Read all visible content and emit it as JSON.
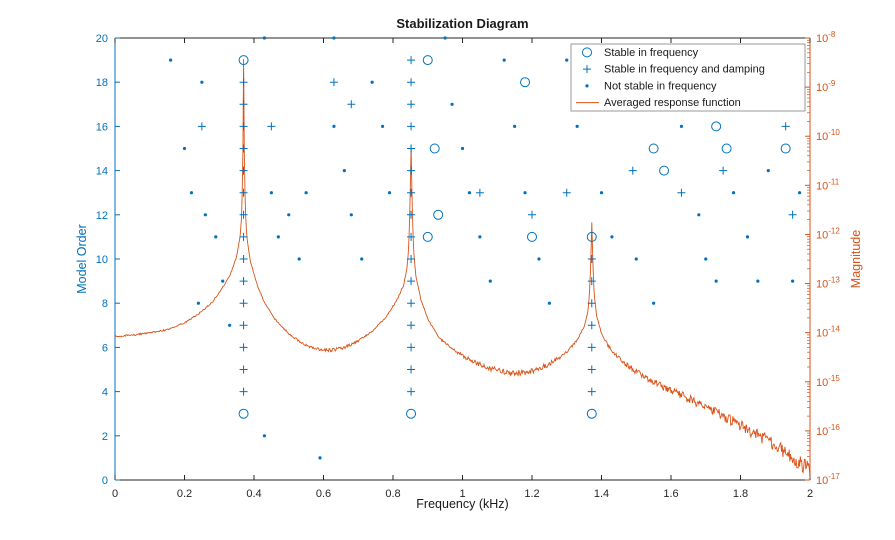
{
  "figure": {
    "background": "#ffffff"
  },
  "chart_data": {
    "type": "scatter+line",
    "title": "Stabilization Diagram",
    "xlabel": "Frequency (kHz)",
    "ylabel_left": "Model Order",
    "ylabel_right": "Magnitude",
    "xlim": [
      0,
      2
    ],
    "ylim_left": [
      0,
      20
    ],
    "ylim_right_log10": [
      -17,
      -8
    ],
    "legend_position": "top-right",
    "grid": false,
    "peak_frequencies_khz": [
      0.37,
      0.852,
      1.372
    ],
    "colors": {
      "blue": "#0072BD",
      "orange": "#D95319",
      "axis": "#262626",
      "legend_border": "#808080"
    },
    "x_ticks": [
      {
        "v": 0,
        "label": "0"
      },
      {
        "v": 0.2,
        "label": "0.2"
      },
      {
        "v": 0.4,
        "label": "0.4"
      },
      {
        "v": 0.6,
        "label": "0.6"
      },
      {
        "v": 0.8,
        "label": "0.8"
      },
      {
        "v": 1,
        "label": "1"
      },
      {
        "v": 1.2,
        "label": "1.2"
      },
      {
        "v": 1.4,
        "label": "1.4"
      },
      {
        "v": 1.6,
        "label": "1.6"
      },
      {
        "v": 1.8,
        "label": "1.8"
      },
      {
        "v": 2,
        "label": "2"
      }
    ],
    "y_left_ticks": [
      {
        "v": 0,
        "label": "0"
      },
      {
        "v": 2,
        "label": "2"
      },
      {
        "v": 4,
        "label": "4"
      },
      {
        "v": 6,
        "label": "6"
      },
      {
        "v": 8,
        "label": "8"
      },
      {
        "v": 10,
        "label": "10"
      },
      {
        "v": 12,
        "label": "12"
      },
      {
        "v": 14,
        "label": "14"
      },
      {
        "v": 16,
        "label": "16"
      },
      {
        "v": 18,
        "label": "18"
      },
      {
        "v": 20,
        "label": "20"
      }
    ],
    "y_right_tick_exponents": [
      -8,
      -9,
      -10,
      -11,
      -12,
      -13,
      -14,
      -15,
      -16,
      -17
    ],
    "series": [
      {
        "name": "Stable in frequency",
        "marker": "circle",
        "axis": "left",
        "points": [
          [
            0.37,
            19
          ],
          [
            0.37,
            3
          ],
          [
            0.852,
            3
          ],
          [
            0.9,
            19
          ],
          [
            0.92,
            15
          ],
          [
            0.93,
            12
          ],
          [
            0.9,
            11
          ],
          [
            1.18,
            18
          ],
          [
            1.2,
            11
          ],
          [
            1.372,
            11
          ],
          [
            1.372,
            3
          ],
          [
            1.5,
            17
          ],
          [
            1.55,
            15
          ],
          [
            1.58,
            14
          ],
          [
            1.73,
            16
          ],
          [
            1.76,
            15
          ],
          [
            1.9,
            17
          ],
          [
            1.93,
            15
          ]
        ]
      },
      {
        "name": "Stable in frequency and damping",
        "marker": "plus",
        "axis": "left",
        "points": [
          [
            0.37,
            4
          ],
          [
            0.37,
            5
          ],
          [
            0.37,
            6
          ],
          [
            0.37,
            7
          ],
          [
            0.37,
            8
          ],
          [
            0.37,
            9
          ],
          [
            0.37,
            10
          ],
          [
            0.37,
            11
          ],
          [
            0.37,
            12
          ],
          [
            0.37,
            13
          ],
          [
            0.37,
            14
          ],
          [
            0.37,
            15
          ],
          [
            0.37,
            16
          ],
          [
            0.37,
            17
          ],
          [
            0.37,
            18
          ],
          [
            0.852,
            4
          ],
          [
            0.852,
            5
          ],
          [
            0.852,
            6
          ],
          [
            0.852,
            7
          ],
          [
            0.852,
            8
          ],
          [
            0.852,
            9
          ],
          [
            0.852,
            10
          ],
          [
            0.852,
            11
          ],
          [
            0.852,
            12
          ],
          [
            0.852,
            13
          ],
          [
            0.852,
            14
          ],
          [
            0.852,
            15
          ],
          [
            0.852,
            16
          ],
          [
            0.852,
            17
          ],
          [
            0.852,
            18
          ],
          [
            0.852,
            19
          ],
          [
            1.372,
            4
          ],
          [
            1.372,
            5
          ],
          [
            1.372,
            6
          ],
          [
            1.372,
            7
          ],
          [
            1.372,
            8
          ],
          [
            1.372,
            9
          ],
          [
            1.372,
            10
          ],
          [
            0.25,
            16
          ],
          [
            0.45,
            16
          ],
          [
            0.63,
            18
          ],
          [
            0.68,
            17
          ],
          [
            1.05,
            13
          ],
          [
            1.2,
            12
          ],
          [
            1.3,
            13
          ],
          [
            1.49,
            14
          ],
          [
            1.63,
            13
          ],
          [
            1.75,
            14
          ],
          [
            1.93,
            16
          ],
          [
            1.95,
            12
          ]
        ]
      },
      {
        "name": "Not stable in frequency",
        "marker": "dot",
        "axis": "left",
        "points": [
          [
            0.16,
            19
          ],
          [
            0.25,
            18
          ],
          [
            0.2,
            15
          ],
          [
            0.22,
            13
          ],
          [
            0.26,
            12
          ],
          [
            0.29,
            11
          ],
          [
            0.24,
            8
          ],
          [
            0.31,
            9
          ],
          [
            0.33,
            7
          ],
          [
            0.43,
            20
          ],
          [
            0.45,
            13
          ],
          [
            0.47,
            11
          ],
          [
            0.43,
            2
          ],
          [
            0.5,
            12
          ],
          [
            0.53,
            10
          ],
          [
            0.55,
            13
          ],
          [
            0.59,
            1
          ],
          [
            0.63,
            20
          ],
          [
            0.63,
            16
          ],
          [
            0.66,
            14
          ],
          [
            0.68,
            12
          ],
          [
            0.71,
            10
          ],
          [
            0.74,
            18
          ],
          [
            0.77,
            16
          ],
          [
            0.79,
            13
          ],
          [
            0.95,
            20
          ],
          [
            0.97,
            17
          ],
          [
            1.0,
            15
          ],
          [
            1.02,
            13
          ],
          [
            1.05,
            11
          ],
          [
            1.08,
            9
          ],
          [
            1.12,
            19
          ],
          [
            1.15,
            16
          ],
          [
            1.18,
            13
          ],
          [
            1.22,
            10
          ],
          [
            1.25,
            8
          ],
          [
            1.3,
            19
          ],
          [
            1.33,
            16
          ],
          [
            1.4,
            13
          ],
          [
            1.43,
            11
          ],
          [
            1.45,
            18
          ],
          [
            1.5,
            10
          ],
          [
            1.55,
            8
          ],
          [
            1.6,
            19
          ],
          [
            1.63,
            16
          ],
          [
            1.68,
            12
          ],
          [
            1.7,
            10
          ],
          [
            1.73,
            9
          ],
          [
            1.78,
            13
          ],
          [
            1.82,
            11
          ],
          [
            1.85,
            9
          ],
          [
            1.88,
            14
          ],
          [
            1.9,
            19
          ],
          [
            1.95,
            9
          ],
          [
            1.97,
            13
          ]
        ]
      },
      {
        "name": "Averaged response function",
        "type": "line",
        "axis": "right",
        "points_log10": [
          [
            0.0,
            -14.08
          ],
          [
            0.05,
            -14.05
          ],
          [
            0.1,
            -14.0
          ],
          [
            0.15,
            -13.94
          ],
          [
            0.2,
            -13.8
          ],
          [
            0.24,
            -13.62
          ],
          [
            0.28,
            -13.38
          ],
          [
            0.31,
            -13.08
          ],
          [
            0.33,
            -12.85
          ],
          [
            0.35,
            -12.45
          ],
          [
            0.36,
            -12.05
          ],
          [
            0.365,
            -11.55
          ],
          [
            0.368,
            -10.3
          ],
          [
            0.37,
            -8.42
          ],
          [
            0.372,
            -10.3
          ],
          [
            0.375,
            -11.55
          ],
          [
            0.38,
            -12.1
          ],
          [
            0.39,
            -12.55
          ],
          [
            0.41,
            -13.05
          ],
          [
            0.43,
            -13.38
          ],
          [
            0.46,
            -13.72
          ],
          [
            0.5,
            -14.02
          ],
          [
            0.54,
            -14.22
          ],
          [
            0.58,
            -14.33
          ],
          [
            0.62,
            -14.36
          ],
          [
            0.66,
            -14.3
          ],
          [
            0.7,
            -14.17
          ],
          [
            0.74,
            -13.97
          ],
          [
            0.78,
            -13.68
          ],
          [
            0.81,
            -13.35
          ],
          [
            0.83,
            -13.05
          ],
          [
            0.84,
            -12.7
          ],
          [
            0.845,
            -12.3
          ],
          [
            0.849,
            -11.4
          ],
          [
            0.852,
            -10.18
          ],
          [
            0.855,
            -11.4
          ],
          [
            0.859,
            -12.3
          ],
          [
            0.866,
            -12.85
          ],
          [
            0.88,
            -13.32
          ],
          [
            0.9,
            -13.72
          ],
          [
            0.93,
            -14.08
          ],
          [
            0.96,
            -14.28
          ],
          [
            1.0,
            -14.47
          ],
          [
            1.04,
            -14.62
          ],
          [
            1.08,
            -14.73
          ],
          [
            1.12,
            -14.8
          ],
          [
            1.16,
            -14.82
          ],
          [
            1.2,
            -14.78
          ],
          [
            1.24,
            -14.67
          ],
          [
            1.28,
            -14.5
          ],
          [
            1.31,
            -14.32
          ],
          [
            1.33,
            -14.15
          ],
          [
            1.35,
            -13.88
          ],
          [
            1.36,
            -13.6
          ],
          [
            1.365,
            -13.25
          ],
          [
            1.369,
            -12.6
          ],
          [
            1.372,
            -11.74
          ],
          [
            1.375,
            -12.6
          ],
          [
            1.379,
            -13.25
          ],
          [
            1.386,
            -13.65
          ],
          [
            1.4,
            -14.02
          ],
          [
            1.42,
            -14.28
          ],
          [
            1.45,
            -14.52
          ],
          [
            1.48,
            -14.7
          ],
          [
            1.52,
            -14.88
          ],
          [
            1.56,
            -15.03
          ],
          [
            1.6,
            -15.17
          ],
          [
            1.64,
            -15.31
          ],
          [
            1.68,
            -15.45
          ],
          [
            1.72,
            -15.6
          ],
          [
            1.76,
            -15.74
          ],
          [
            1.8,
            -15.89
          ],
          [
            1.84,
            -16.04
          ],
          [
            1.88,
            -16.2
          ],
          [
            1.92,
            -16.38
          ],
          [
            1.96,
            -16.58
          ],
          [
            2.0,
            -16.8
          ]
        ]
      }
    ]
  }
}
